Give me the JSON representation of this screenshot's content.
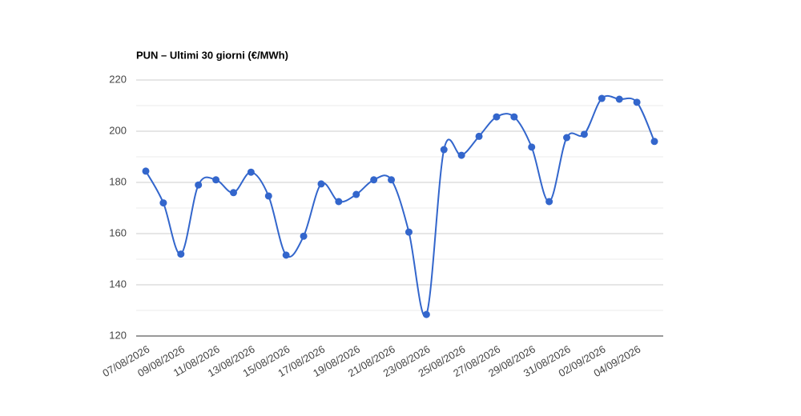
{
  "chart_data": {
    "type": "line",
    "title": "PUN – Ultimi 30 giorni (€/MWh)",
    "categories": [
      "07/08/2026",
      null,
      "09/08/2026",
      null,
      "11/08/2026",
      null,
      "13/08/2026",
      null,
      "15/08/2026",
      null,
      "17/08/2026",
      null,
      "19/08/2026",
      null,
      "21/08/2026",
      null,
      "23/08/2026",
      null,
      "25/08/2026",
      null,
      "27/08/2026",
      null,
      "29/08/2026",
      null,
      "31/08/2026",
      null,
      "02/09/2026",
      null,
      "04/09/2026",
      null
    ],
    "series": [
      {
        "name": "PUN",
        "color": "#3366cc",
        "values": [
          184.4,
          172,
          152,
          179,
          181,
          176,
          184,
          174.7,
          151.6,
          159,
          179.4,
          172.5,
          175.3,
          181,
          181,
          160.6,
          128.4,
          192.8,
          190.6,
          198,
          205.6,
          205.6,
          193.8,
          172.5,
          197.5,
          198.8,
          212.8,
          212.5,
          211.3,
          196
        ]
      }
    ],
    "ylim": [
      120,
      220
    ],
    "yticks": [
      120,
      140,
      160,
      180,
      200,
      220
    ],
    "grid": true,
    "minor_grid": true,
    "smooth": true
  }
}
